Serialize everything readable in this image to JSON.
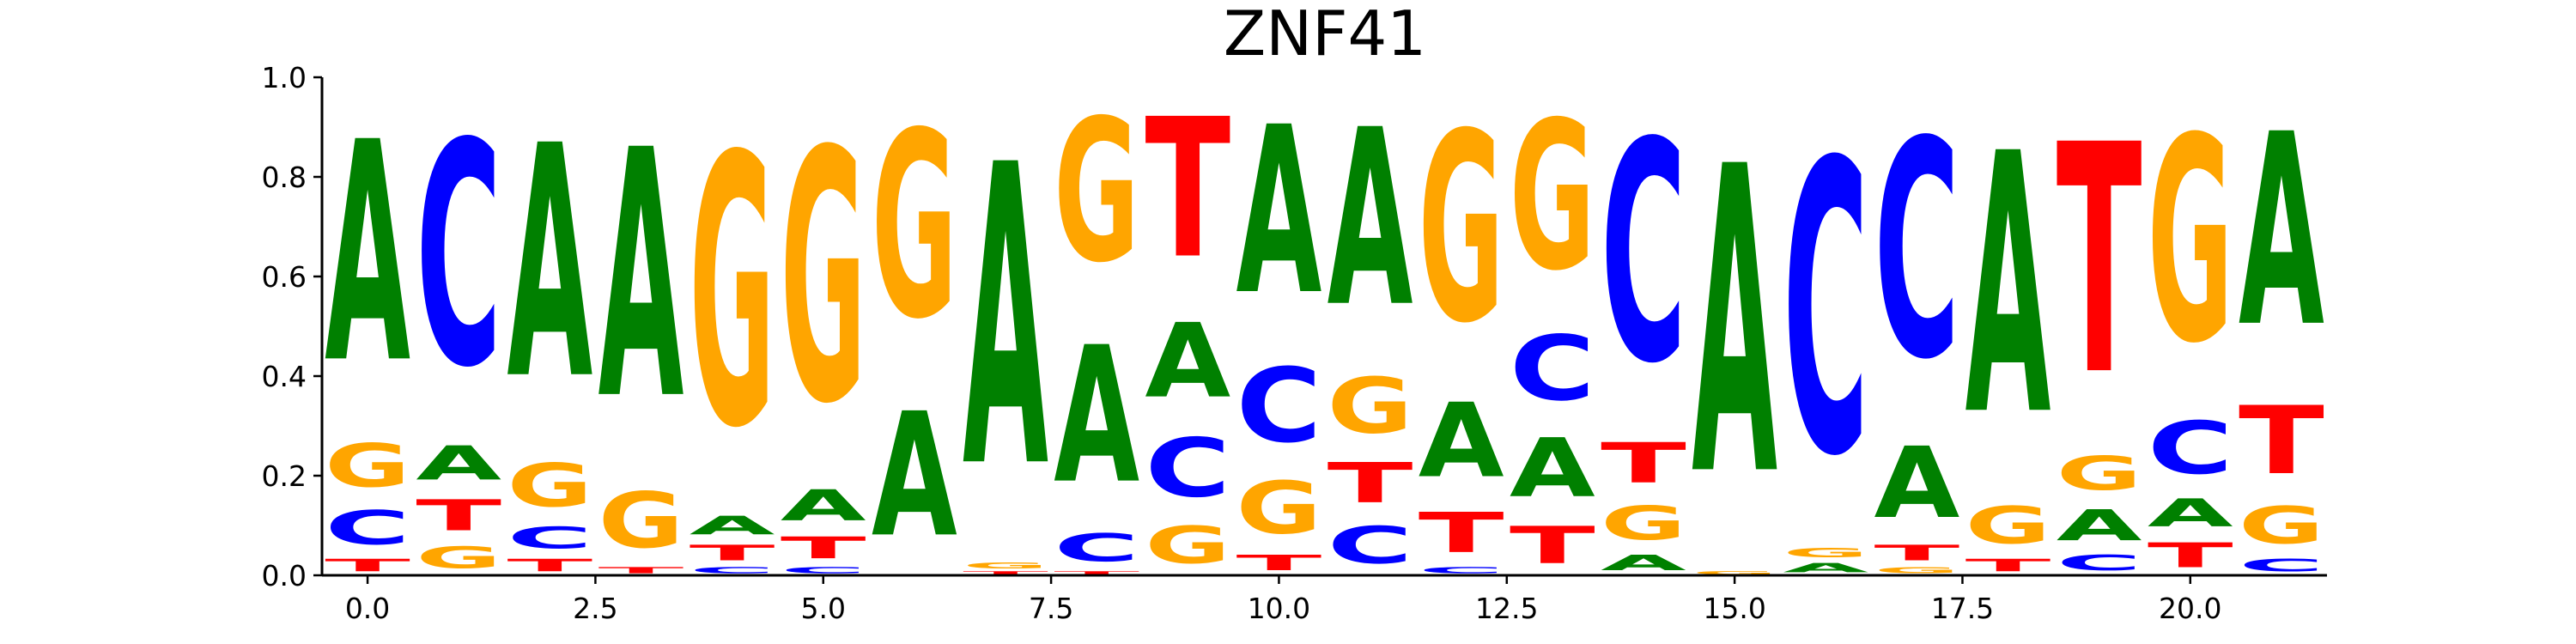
{
  "chart_data": {
    "type": "sequence-logo",
    "title": "ZNF41",
    "xlabel": "",
    "ylabel": "",
    "xlim": [
      -0.5,
      21.5
    ],
    "ylim": [
      0,
      1
    ],
    "x_ticks": [
      0,
      2.5,
      5,
      7.5,
      10,
      12.5,
      15,
      17.5,
      20
    ],
    "x_tick_labels": [
      "0.0",
      "2.5",
      "5.0",
      "7.5",
      "10.0",
      "12.5",
      "15.0",
      "17.5",
      "20.0"
    ],
    "y_ticks": [
      0,
      0.2,
      0.4,
      0.6,
      0.8,
      1.0
    ],
    "y_tick_labels": [
      "0.0",
      "0.2",
      "0.4",
      "0.6",
      "0.8",
      "1.0"
    ],
    "colors": {
      "A": "#008000",
      "C": "#0000ff",
      "G": "#ffa500",
      "T": "#ff0000"
    },
    "positions": [
      {
        "x": 0,
        "A": 0.71,
        "C": 0.11,
        "G": 0.14,
        "T": 0.04
      },
      {
        "x": 1,
        "A": 0.11,
        "C": 0.72,
        "G": 0.07,
        "T": 0.1
      },
      {
        "x": 2,
        "A": 0.75,
        "C": 0.07,
        "G": 0.14,
        "T": 0.04
      },
      {
        "x": 3,
        "A": 0.8,
        "C": 0.0,
        "G": 0.18,
        "T": 0.02
      },
      {
        "x": 4,
        "A": 0.06,
        "C": 0.02,
        "G": 0.87,
        "T": 0.05
      },
      {
        "x": 5,
        "A": 0.1,
        "C": 0.02,
        "G": 0.81,
        "T": 0.07
      },
      {
        "x": 6,
        "A": 0.4,
        "C": 0.0,
        "G": 0.6,
        "T": 0.0
      },
      {
        "x": 7,
        "A": 0.97,
        "C": 0.0,
        "G": 0.02,
        "T": 0.01
      },
      {
        "x": 8,
        "A": 0.44,
        "C": 0.09,
        "G": 0.46,
        "T": 0.01
      },
      {
        "x": 9,
        "A": 0.24,
        "C": 0.19,
        "G": 0.12,
        "T": 0.45
      },
      {
        "x": 10,
        "A": 0.54,
        "C": 0.24,
        "G": 0.17,
        "T": 0.05
      },
      {
        "x": 11,
        "A": 0.57,
        "C": 0.12,
        "G": 0.18,
        "T": 0.13
      },
      {
        "x": 12,
        "A": 0.24,
        "C": 0.02,
        "G": 0.61,
        "T": 0.13
      },
      {
        "x": 13,
        "A": 0.19,
        "C": 0.21,
        "G": 0.48,
        "T": 0.12
      },
      {
        "x": 14,
        "A": 0.05,
        "C": 0.71,
        "G": 0.11,
        "T": 0.13
      },
      {
        "x": 15,
        "A": 0.99,
        "C": 0.0,
        "G": 0.01,
        "T": 0.0
      },
      {
        "x": 16,
        "A": 0.03,
        "C": 0.94,
        "G": 0.03,
        "T": 0.0
      },
      {
        "x": 17,
        "A": 0.23,
        "C": 0.7,
        "G": 0.02,
        "T": 0.05
      },
      {
        "x": 18,
        "A": 0.84,
        "C": 0.0,
        "G": 0.12,
        "T": 0.04
      },
      {
        "x": 19,
        "A": 0.1,
        "C": 0.05,
        "G": 0.11,
        "T": 0.74
      },
      {
        "x": 20,
        "A": 0.09,
        "C": 0.17,
        "G": 0.66,
        "T": 0.08
      },
      {
        "x": 21,
        "A": 0.62,
        "C": 0.04,
        "G": 0.12,
        "T": 0.22
      }
    ]
  }
}
